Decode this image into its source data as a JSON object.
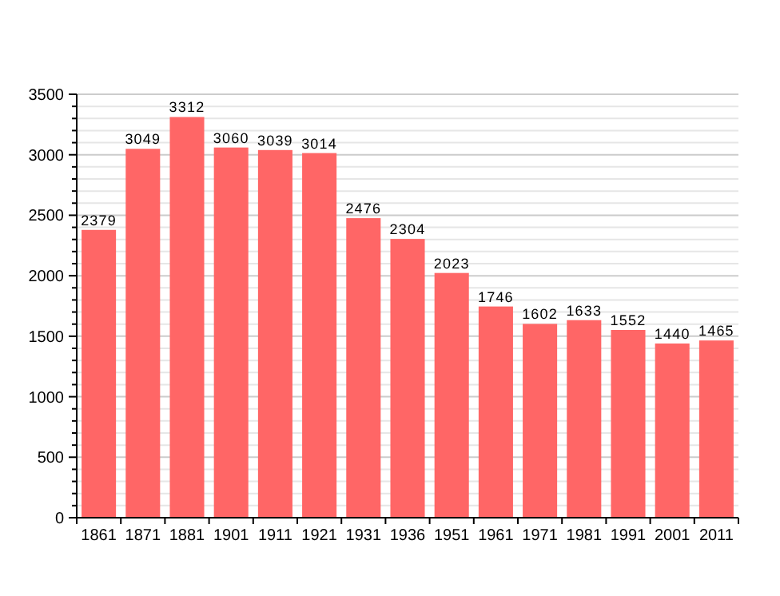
{
  "chart_data": {
    "type": "bar",
    "categories": [
      "1861",
      "1871",
      "1881",
      "1901",
      "1911",
      "1921",
      "1931",
      "1936",
      "1951",
      "1961",
      "1971",
      "1981",
      "1991",
      "2001",
      "2011"
    ],
    "values": [
      2379,
      3049,
      3312,
      3060,
      3039,
      3014,
      2476,
      2304,
      2023,
      1746,
      1602,
      1633,
      1552,
      1440,
      1465
    ],
    "color": "#ff6666",
    "ylim": [
      0,
      3500
    ],
    "yticks": [
      0,
      {
        "value": 100,
        "label": null
      },
      {
        "value": 200,
        "label": null
      },
      {
        "value": 300,
        "label": null
      },
      {
        "value": 400,
        "label": null
      },
      500,
      {
        "value": 600,
        "label": null
      },
      {
        "value": 700,
        "label": null
      },
      {
        "value": 800,
        "label": null
      },
      {
        "value": 900,
        "label": null
      },
      1000,
      {
        "value": 1100,
        "label": null
      },
      {
        "value": 1200,
        "label": null
      },
      {
        "value": 1300,
        "label": null
      },
      {
        "value": 1400,
        "label": null
      },
      1500,
      {
        "value": 1600,
        "label": null
      },
      {
        "value": 1700,
        "label": null
      },
      {
        "value": 1800,
        "label": null
      },
      {
        "value": 1900,
        "label": null
      },
      2000,
      {
        "value": 2100,
        "label": null
      },
      {
        "value": 2200,
        "label": null
      },
      {
        "value": 2300,
        "label": null
      },
      {
        "value": 2400,
        "label": null
      },
      2500,
      {
        "value": 2600,
        "label": null
      },
      {
        "value": 2700,
        "label": null
      },
      {
        "value": 2800,
        "label": null
      },
      {
        "value": 2900,
        "label": null
      },
      3000,
      {
        "value": 3100,
        "label": null
      },
      {
        "value": 3200,
        "label": null
      },
      {
        "value": 3300,
        "label": null
      },
      {
        "value": 3400,
        "label": null
      },
      3500
    ],
    "grid": true,
    "data_labels": true
  }
}
